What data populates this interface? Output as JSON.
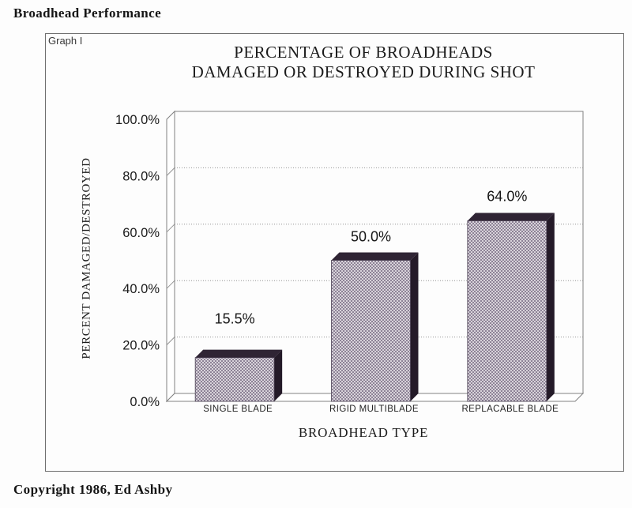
{
  "page": {
    "header": "Broadhead Performance",
    "footer": "Copyright 1986, Ed Ashby",
    "graph_label": "Graph I"
  },
  "chart": {
    "title_line1": "PERCENTAGE OF BROADHEADS",
    "title_line2": "DAMAGED OR DESTROYED DURING SHOT",
    "xlabel": "BROADHEAD TYPE",
    "ylabel": "PERCENT DAMAGED/DESTROYED"
  },
  "chart_data": {
    "type": "bar",
    "style": "3d-bar",
    "title": "PERCENTAGE OF BROADHEADS DAMAGED OR DESTROYED DURING SHOT",
    "categories": [
      "SINGLE BLADE",
      "RIGID MULTIBLADE",
      "REPLACABLE BLADE"
    ],
    "values": [
      15.5,
      50.0,
      64.0
    ],
    "value_labels": [
      "15.5%",
      "50.0%",
      "64.0%"
    ],
    "xlabel": "BROADHEAD TYPE",
    "ylabel": "PERCENT DAMAGED/DESTROYED",
    "ylim": [
      0,
      100
    ],
    "yticks": [
      0,
      20,
      40,
      60,
      80,
      100
    ],
    "ytick_labels": [
      "0.0%",
      "20.0%",
      "40.0%",
      "60.0%",
      "80.0%",
      "100.0%"
    ],
    "grid": true,
    "legend": false,
    "colors": {
      "bar_checker_light": "#d8d3da",
      "bar_checker_dark": "#8d8296",
      "bar_front_stroke": "#4c4254",
      "bar_side": "#241a28",
      "bar_top": "#2f2434",
      "wall_stroke": "#818181",
      "gridline": "#949494",
      "text": "#1a1a1a"
    }
  }
}
